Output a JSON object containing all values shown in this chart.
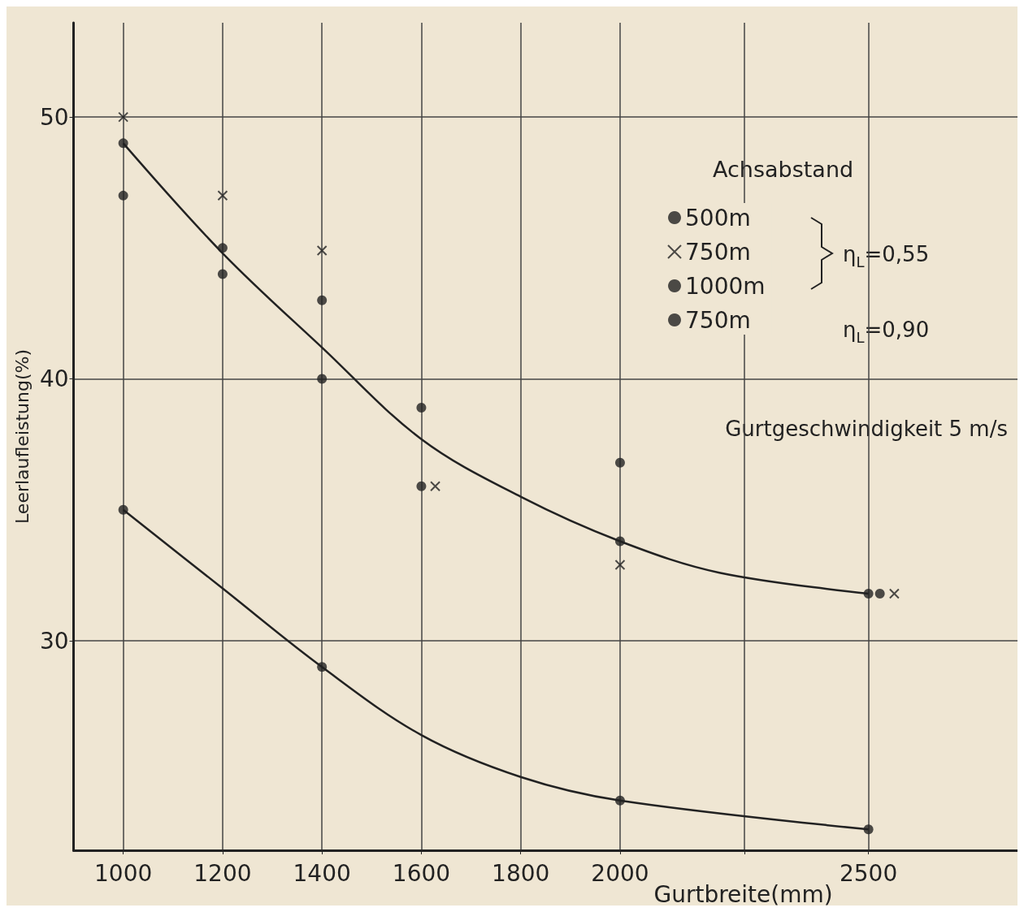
{
  "chart_data": {
    "type": "scatter",
    "xlabel": "Gurtbreite(mm)",
    "ylabel": "Leerlaufleistung(%)",
    "legend_title": "Achsabstand",
    "legend": "top right",
    "grid": true,
    "xlim": [
      900,
      2800
    ],
    "xticks": [
      1000,
      1200,
      1400,
      1600,
      1800,
      2000,
      {
        "value": 2250,
        "label": null
      },
      2500
    ],
    "ylim": [
      22,
      53.6
    ],
    "yticks": [
      30,
      40,
      50
    ],
    "annotations": [
      "η$_{L}$=0,55",
      "η$_{L}$=0,90",
      "Gurtgeschwindigkeit 5 m/s"
    ],
    "series": [
      {
        "name": "500m",
        "color": "#222222",
        "marker": "circle",
        "x": [
          1000,
          1200,
          1400,
          1600,
          2000,
          2523
        ],
        "values": [
          49.0,
          45.0,
          43.0,
          38.9,
          36.8,
          31.8
        ]
      },
      {
        "name": "750m",
        "color": "#222222",
        "marker": "cross",
        "x": [
          1000,
          1200,
          1400,
          1628,
          2000,
          2552
        ],
        "values": [
          50.0,
          47.0,
          44.9,
          35.9,
          32.9,
          31.8
        ]
      },
      {
        "name": "1000m",
        "color": "#222222",
        "marker": "circle",
        "x": [
          1000,
          1200,
          1400,
          1600,
          2000,
          2500
        ],
        "values": [
          47.0,
          44.0,
          40.0,
          35.9,
          33.8,
          31.8
        ]
      },
      {
        "name": "750m",
        "color": "#222222",
        "marker": "circle",
        "x": [
          1000,
          1400,
          2000,
          2500
        ],
        "values": [
          35.0,
          29.0,
          23.9,
          22.8
        ]
      },
      {
        "type": "line",
        "color": "#222222",
        "marker": "none",
        "x": [
          1000,
          1200,
          1400,
          1600,
          1800,
          2000,
          2200,
          2500
        ],
        "values": [
          49.0,
          44.8,
          41.2,
          37.7,
          35.5,
          33.8,
          32.6,
          31.8
        ]
      },
      {
        "type": "line",
        "color": "#222222",
        "marker": "none",
        "x": [
          1000,
          1200,
          1400,
          1600,
          1800,
          2000,
          2500
        ],
        "values": [
          35.0,
          32.0,
          29.0,
          26.4,
          24.8,
          23.9,
          22.8
        ]
      }
    ]
  }
}
